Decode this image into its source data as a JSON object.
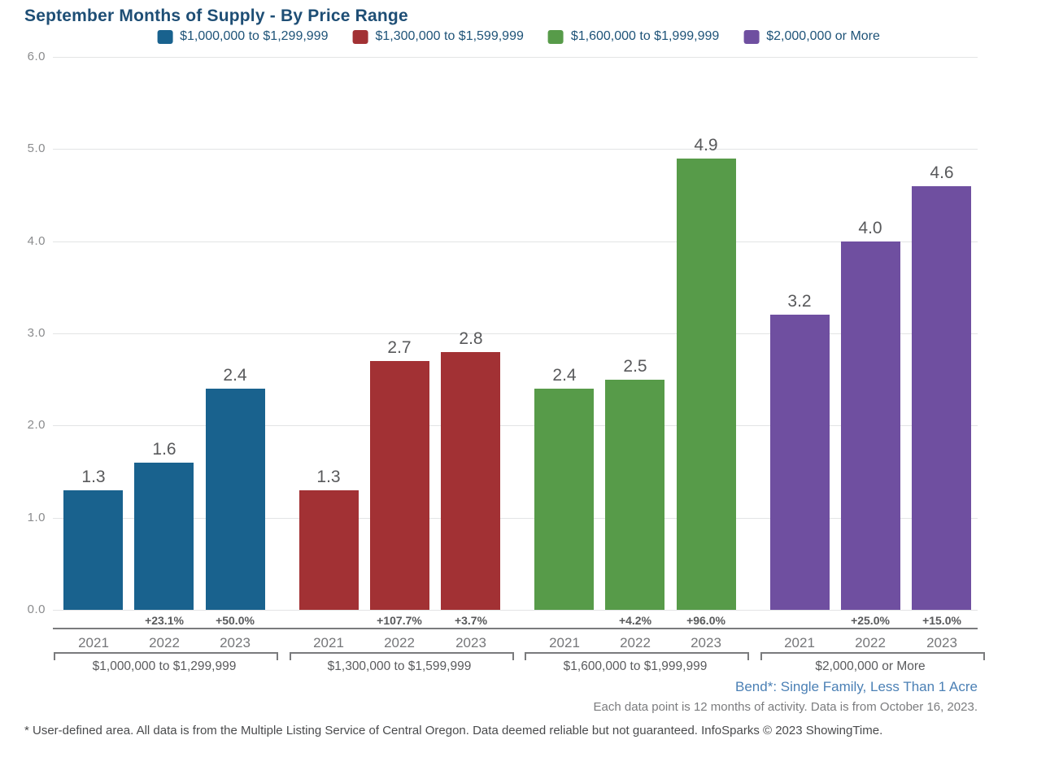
{
  "title": "September Months of Supply - By Price Range",
  "colors": {
    "title_text": "#1E4E75",
    "legend_text": "#1E5378",
    "value_text": "#58595B",
    "pct_text": "#58595B",
    "year_text": "#757679",
    "group_label_text": "#5A5B5D",
    "ytick_text": "#8A8B8D",
    "gridline": "#E3E4E5",
    "axis_line": "#7A7B7D",
    "bracket": "#7A7B7D",
    "context_link": "#4B80B5",
    "note_text": "#7B7C7E",
    "disclaimer_text": "#4A4B4D"
  },
  "legend": [
    {
      "label": "$1,000,000 to $1,299,999",
      "color": "#19628E"
    },
    {
      "label": "$1,300,000 to $1,599,999",
      "color": "#A23134"
    },
    {
      "label": "$1,600,000 to $1,999,999",
      "color": "#579B49"
    },
    {
      "label": "$2,000,000 or More",
      "color": "#6F4FA0"
    }
  ],
  "chart_data": {
    "type": "bar",
    "title": "September Months of Supply - By Price Range",
    "xlabel": "",
    "ylabel": "",
    "ylim": [
      0,
      6
    ],
    "ytick_step": 1,
    "grid": true,
    "legend_position": "top",
    "categories": [
      "2021",
      "2022",
      "2023"
    ],
    "groups": [
      {
        "label": "$1,000,000 to $1,299,999",
        "color": "#19628E",
        "values": [
          1.3,
          1.6,
          2.4
        ],
        "pct_change": [
          "",
          "+23.1%",
          "+50.0%"
        ]
      },
      {
        "label": "$1,300,000 to $1,599,999",
        "color": "#A23134",
        "values": [
          1.3,
          2.7,
          2.8
        ],
        "pct_change": [
          "",
          "+107.7%",
          "+3.7%"
        ]
      },
      {
        "label": "$1,600,000 to $1,999,999",
        "color": "#579B49",
        "values": [
          2.4,
          2.5,
          4.9
        ],
        "pct_change": [
          "",
          "+4.2%",
          "+96.0%"
        ]
      },
      {
        "label": "$2,000,000 or More",
        "color": "#6F4FA0",
        "values": [
          3.2,
          4.0,
          4.6
        ],
        "pct_change": [
          "",
          "+25.0%",
          "+15.0%"
        ]
      }
    ]
  },
  "footer": {
    "context_label": "Bend*: Single Family, Less Than 1 Acre",
    "data_note": "Each data point is 12 months of activity. Data is from October 16, 2023.",
    "disclaimer": "* User-defined area. All data is from the Multiple Listing Service of Central Oregon. Data deemed reliable but not guaranteed. InfoSparks © 2023 ShowingTime."
  }
}
